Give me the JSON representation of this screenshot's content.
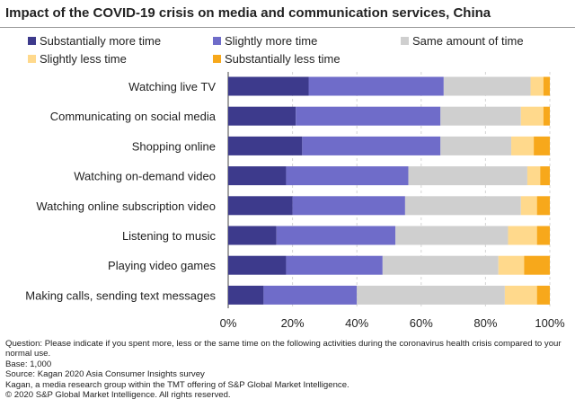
{
  "title": "Impact of the COVID-19 crisis on media and communication services, China",
  "chart_data": {
    "type": "bar",
    "orientation": "horizontal",
    "stacked": true,
    "categories": [
      "Watching live TV",
      "Communicating on social media",
      "Shopping online",
      "Watching on-demand video",
      "Watching online subscription video",
      "Listening to music",
      "Playing video games",
      "Making calls, sending text messages"
    ],
    "series": [
      {
        "name": "Substantially more time",
        "color": "#3d3a8c",
        "values": [
          25,
          21,
          23,
          18,
          20,
          15,
          18,
          11
        ]
      },
      {
        "name": "Slightly more time",
        "color": "#6f6cc9",
        "values": [
          42,
          45,
          43,
          38,
          35,
          37,
          30,
          29
        ]
      },
      {
        "name": "Same amount of time",
        "color": "#cfcfcf",
        "values": [
          27,
          25,
          22,
          37,
          36,
          35,
          36,
          46
        ]
      },
      {
        "name": "Slightly less time",
        "color": "#ffd98c",
        "values": [
          4,
          7,
          7,
          4,
          5,
          9,
          8,
          10
        ]
      },
      {
        "name": "Substantially less time",
        "color": "#f7a81b",
        "values": [
          2,
          2,
          5,
          3,
          4,
          4,
          8,
          4
        ]
      }
    ],
    "xlim": [
      0,
      100
    ],
    "xticks": [
      "0%",
      "20%",
      "40%",
      "60%",
      "80%",
      "100%"
    ],
    "grid": true,
    "legend_position": "top"
  },
  "notes": {
    "question": "Question: Please indicate if you spent more, less or the same time on the following activities during the coronavirus health crisis compared to your normal use.",
    "base": "Base: 1,000",
    "source": "Source: Kagan 2020 Asia Consumer Insights survey",
    "attribution": "Kagan, a media research group within the TMT offering of S&P Global Market Intelligence.",
    "copyright": "© 2020 S&P Global Market Intelligence. All rights reserved."
  }
}
